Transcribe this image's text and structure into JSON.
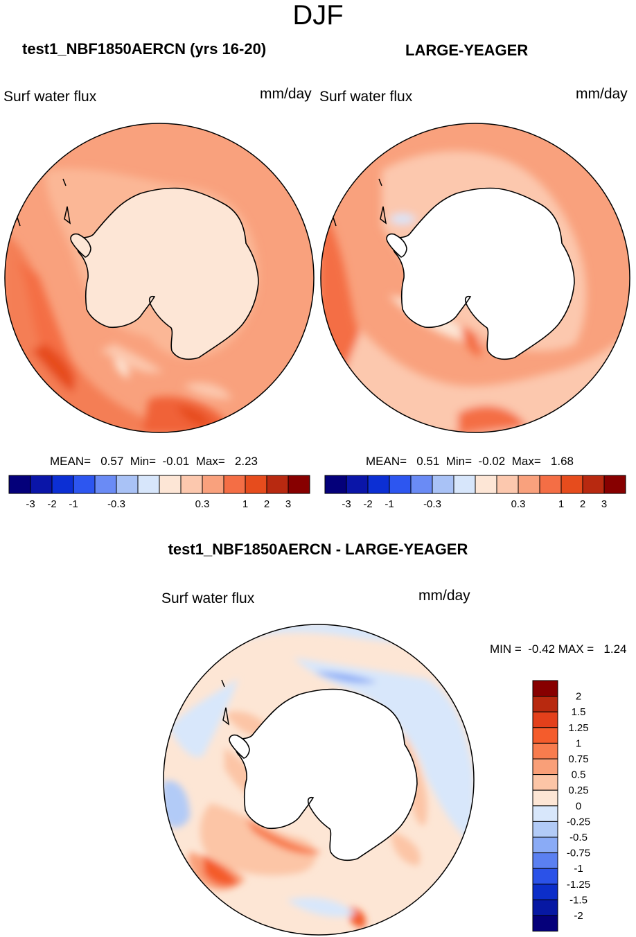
{
  "season": "DJF",
  "panels": [
    {
      "title": "test1_NBF1850AERCN (yrs 16-20)",
      "variable": "Surf water flux",
      "units": "mm/day",
      "mean": "0.57",
      "min": "-0.01",
      "max": "2.23",
      "stats_line": "MEAN=   0.57  Min=  -0.01  Max=   2.23"
    },
    {
      "title": "LARGE-YEAGER",
      "variable": "Surf water flux",
      "units": "mm/day",
      "mean": "0.51",
      "min": "-0.02",
      "max": "1.68",
      "stats_line": "MEAN=   0.51  Min=  -0.02  Max=   1.68"
    }
  ],
  "colorbar_main": {
    "colors": [
      "#04007a",
      "#0a15a8",
      "#0c2fd4",
      "#2d56f0",
      "#6a8bf5",
      "#a9c2f6",
      "#d7e6fb",
      "#fde6d6",
      "#fcc8ae",
      "#f9a17d",
      "#f46e45",
      "#e64c1d",
      "#b82910",
      "#870000"
    ],
    "tick_labels": [
      "-3",
      "-2",
      "-1",
      "-0.3",
      "0.3",
      "1",
      "2",
      "3"
    ]
  },
  "diff_panel": {
    "title": "test1_NBF1850AERCN - LARGE-YEAGER",
    "variable": "Surf water flux",
    "units": "mm/day",
    "min": "-0.42",
    "max": "1.24",
    "minmax_line": "MIN =  -0.42 MAX =   1.24"
  },
  "colorbar_diff": {
    "colors_top_to_bottom": [
      "#870000",
      "#b8290f",
      "#e3401b",
      "#f45c2c",
      "#f87c4e",
      "#f99f78",
      "#fcc5a6",
      "#fde6d5",
      "#d8e7fb",
      "#b2cbf7",
      "#8aabf6",
      "#5b80f1",
      "#2b52e8",
      "#0c2ec9",
      "#0718a3",
      "#05007a"
    ],
    "labels_top_to_bottom": [
      "2",
      "1.5",
      "1.25",
      "1",
      "0.75",
      "0.5",
      "0.25",
      "0",
      "-0.25",
      "-0.5",
      "-0.75",
      "-1",
      "-1.25",
      "-1.5",
      "-2"
    ]
  }
}
